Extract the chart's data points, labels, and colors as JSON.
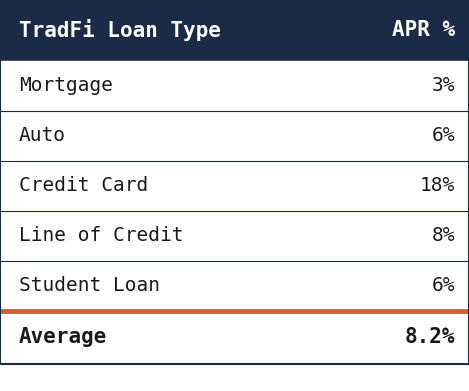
{
  "header": [
    "TradFi Loan Type",
    "APR %"
  ],
  "rows": [
    [
      "Mortgage",
      "3%"
    ],
    [
      "Auto",
      "6%"
    ],
    [
      "Credit Card",
      "18%"
    ],
    [
      "Line of Credit",
      "8%"
    ],
    [
      "Student Loan",
      "6%"
    ]
  ],
  "footer": [
    "Average",
    "8.2%"
  ],
  "header_bg_color": "#1a2b47",
  "header_text_color": "#ffffff",
  "row_bg_color": "#ffffff",
  "row_text_color": "#1a1a1a",
  "footer_text_color": "#1a1a1a",
  "footer_bg_color": "#ffffff",
  "divider_color": "#1a2b47",
  "orange_divider_color": "#d95f2b",
  "figure_bg_color": "#ffffff",
  "font_family": "DejaVu Sans Mono",
  "header_fontsize": 15,
  "row_fontsize": 14,
  "footer_fontsize": 15
}
